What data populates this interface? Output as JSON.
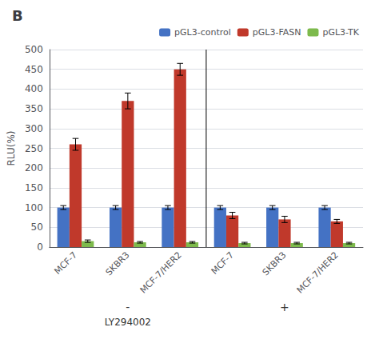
{
  "chart_data": {
    "type": "bar",
    "title": "B",
    "ylabel": "RLU(%)",
    "categories": [
      "MCF-7",
      "SKBR3",
      "MCF-7/HER2",
      "MCF-7",
      "SKBR3",
      "MCF-7/HER2"
    ],
    "series": [
      {
        "name": "pGL3-control",
        "color": "#4472c4",
        "values": [
          100,
          100,
          100,
          100,
          100,
          100
        ],
        "errors": [
          5,
          5,
          5,
          5,
          5,
          5
        ]
      },
      {
        "name": "pGL3-FASN",
        "color": "#c0392b",
        "values": [
          260,
          370,
          450,
          80,
          70,
          65
        ],
        "errors": [
          15,
          20,
          15,
          8,
          8,
          5
        ]
      },
      {
        "name": "pGL3-TK",
        "color": "#7dba4c",
        "values": [
          15,
          12,
          12,
          10,
          10,
          10
        ],
        "errors": [
          3,
          2,
          2,
          2,
          2,
          2
        ]
      }
    ],
    "ylim": [
      0,
      500
    ],
    "yticks": [
      0,
      50,
      100,
      150,
      200,
      250,
      300,
      350,
      400,
      450,
      500
    ],
    "grid": true,
    "legend": "upper right",
    "annotations": [
      "-",
      "+",
      "LY294002"
    ]
  }
}
